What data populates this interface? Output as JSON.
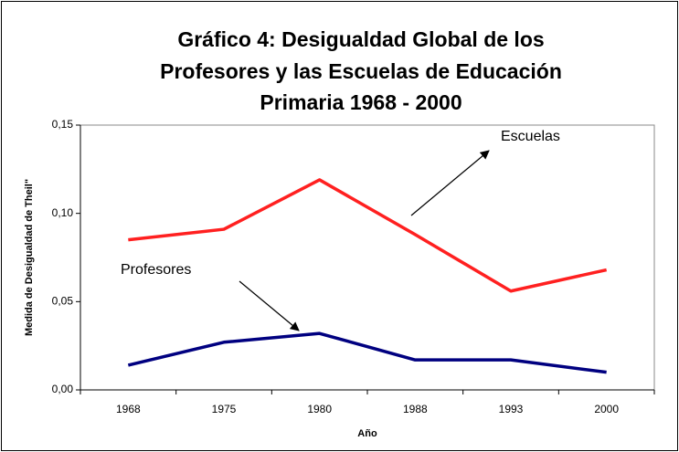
{
  "chart_data": {
    "type": "line",
    "title": [
      "Gráfico 4: Desigualdad Global de los",
      "Profesores y las Escuelas de Educación",
      "Primaria 1968 - 2000"
    ],
    "x_label": "Año",
    "y_label": "Medida de Desigualdad de Theil\"",
    "categories": [
      "1968",
      "1975",
      "1980",
      "1988",
      "1993",
      "2000"
    ],
    "series": [
      {
        "name": "Escuelas",
        "color": "#ff2020",
        "values": [
          0.085,
          0.091,
          0.119,
          0.088,
          0.056,
          0.068
        ]
      },
      {
        "name": "Profesores",
        "color": "#000080",
        "values": [
          0.014,
          0.027,
          0.032,
          0.017,
          0.017,
          0.01
        ]
      }
    ],
    "ylim": [
      0,
      0.15
    ],
    "yticks": [
      {
        "value": 0,
        "label": "0,00"
      },
      {
        "value": 0.05,
        "label": "0,05"
      },
      {
        "value": 0.1,
        "label": "0,10"
      },
      {
        "value": 0.15,
        "label": "0,15"
      }
    ]
  }
}
